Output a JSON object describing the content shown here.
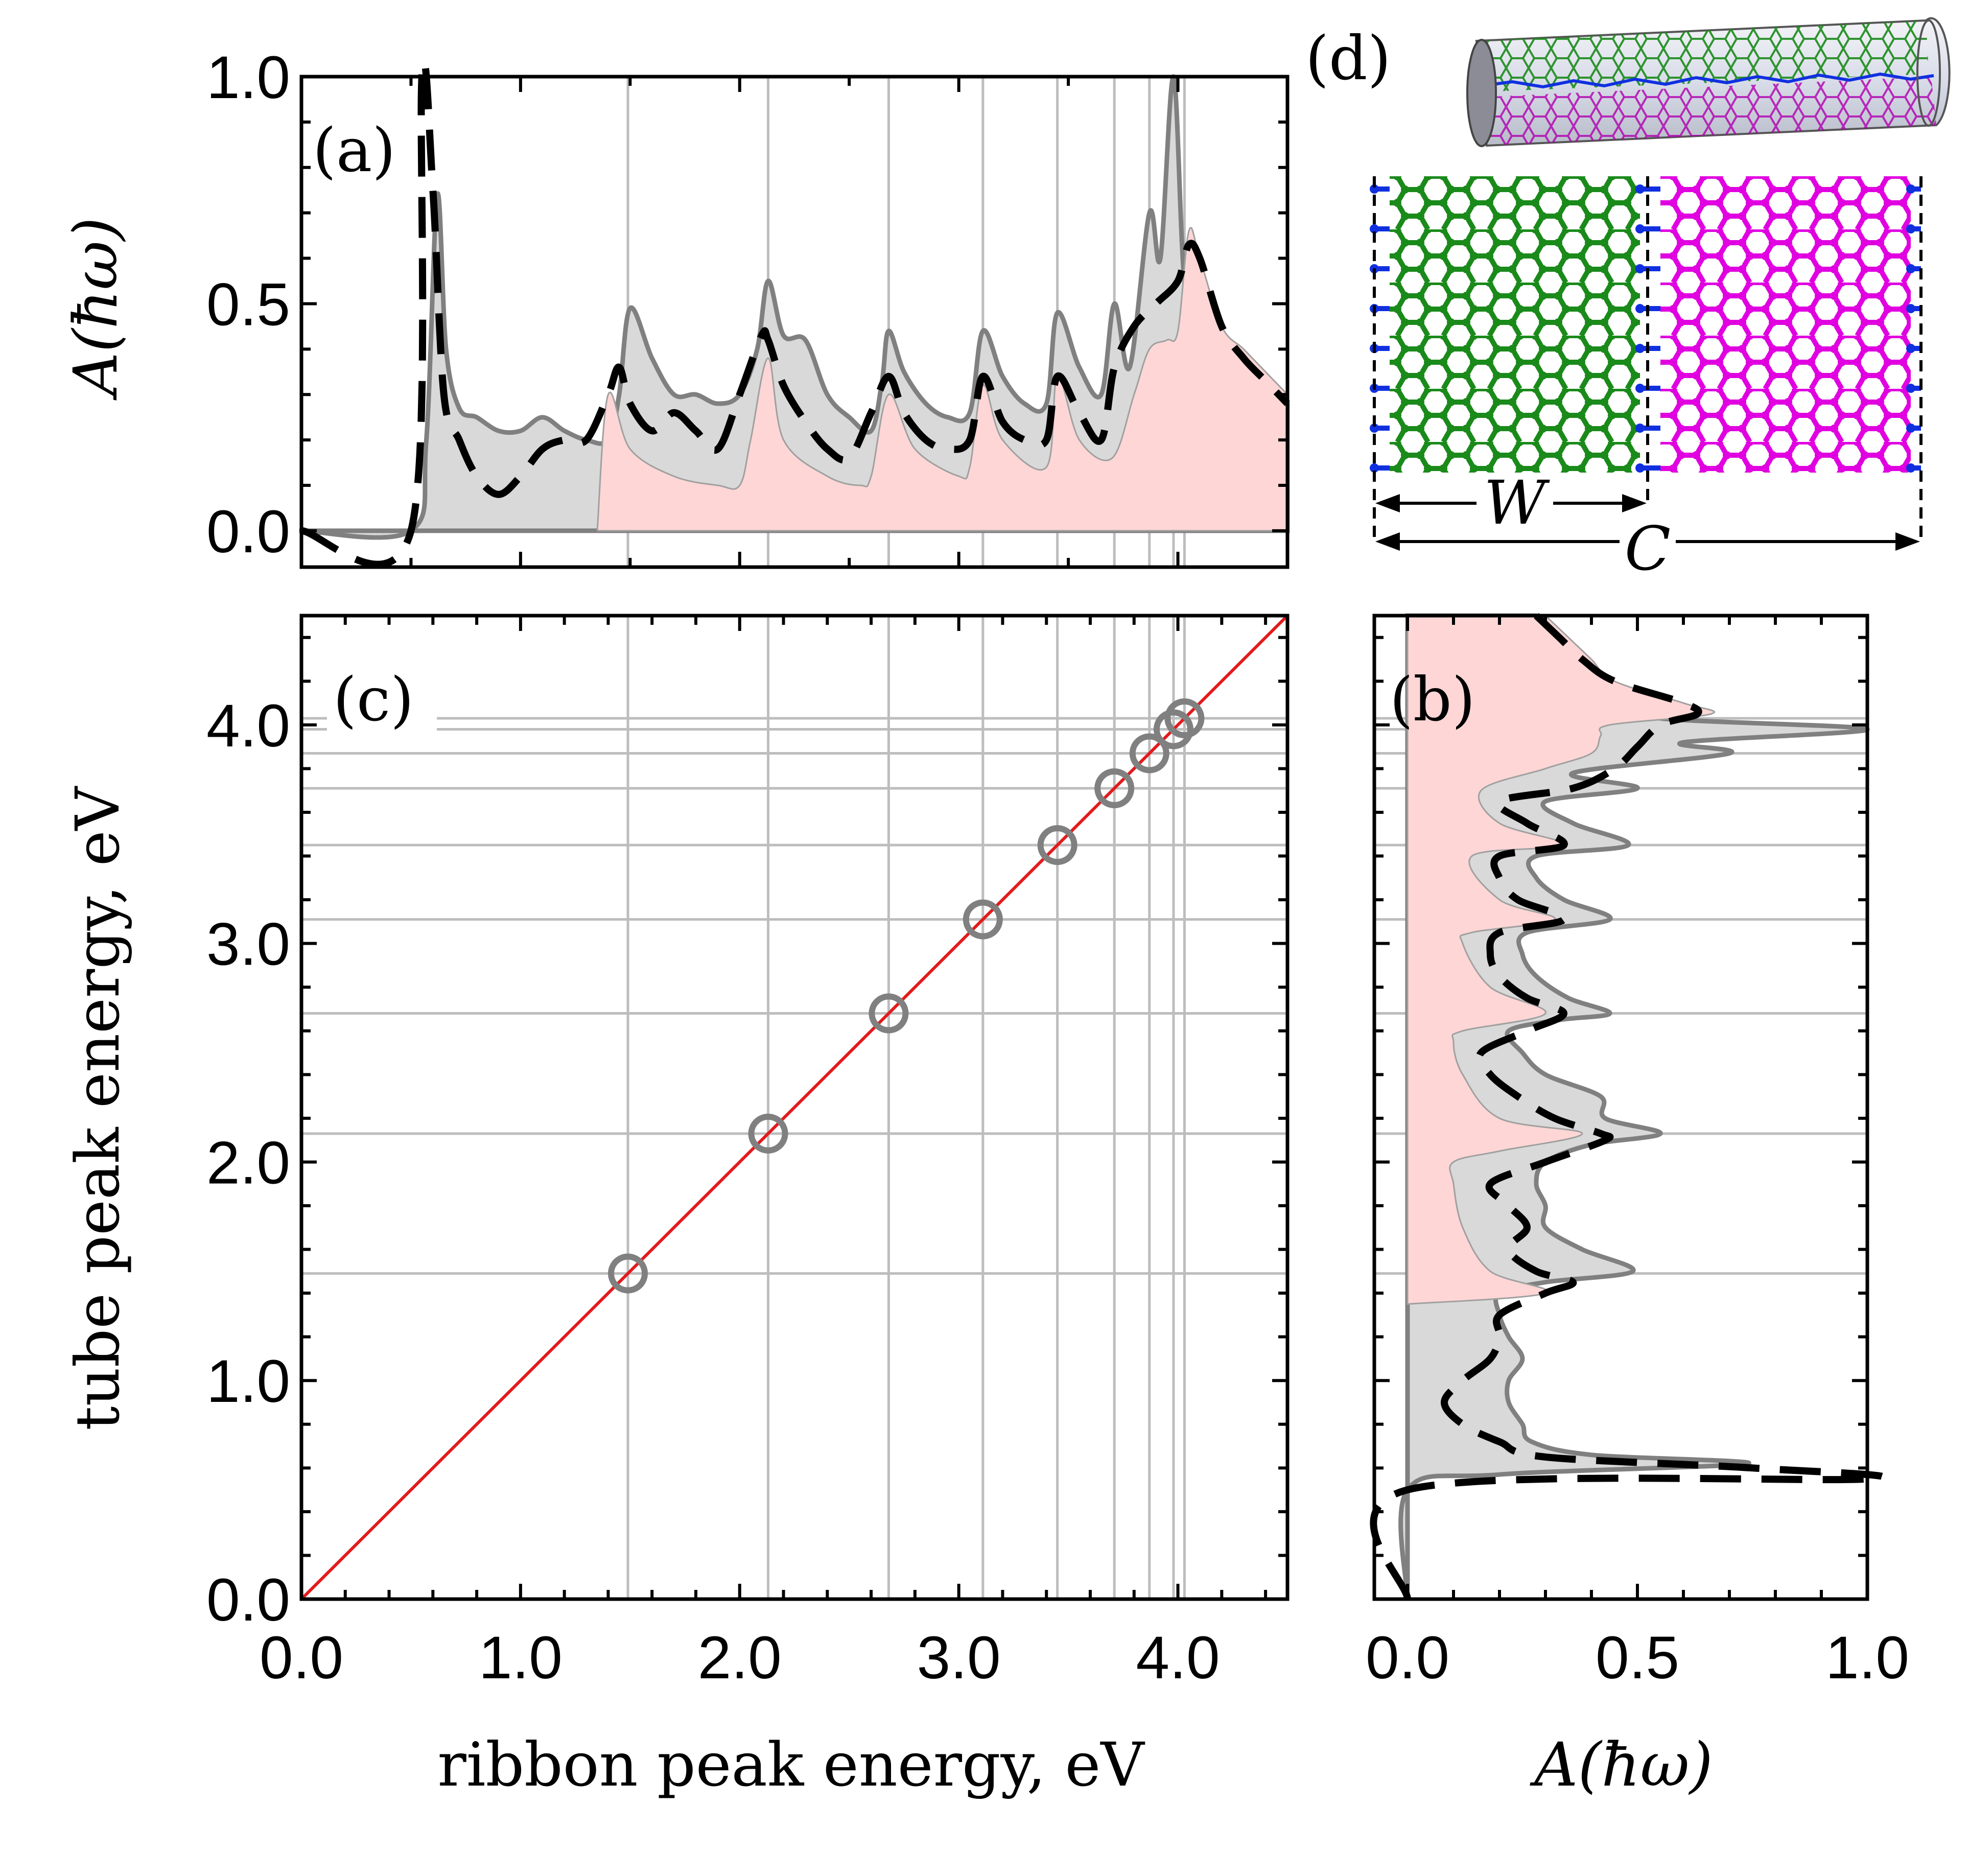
{
  "chart_data": [
    {
      "panel": "a",
      "type": "area",
      "panel_label": "(a)",
      "ylabel": "A(ħω)",
      "xlim": [
        0.0,
        4.5
      ],
      "ylim": [
        -0.08,
        1.0
      ],
      "yticks": [
        "0.0",
        "0.5",
        "1.0"
      ],
      "peak_lines_x": [
        1.49,
        2.13,
        2.68,
        3.11,
        3.45,
        3.71,
        3.87,
        3.98,
        4.03
      ],
      "series": [
        {
          "style": "gray filled",
          "x": [
            0.0,
            0.5,
            0.57,
            0.62,
            0.66,
            0.72,
            0.8,
            0.9,
            1.0,
            1.1,
            1.2,
            1.3,
            1.4,
            1.45,
            1.5,
            1.6,
            1.7,
            1.8,
            1.9,
            2.0,
            2.08,
            2.13,
            2.2,
            2.3,
            2.4,
            2.5,
            2.6,
            2.65,
            2.68,
            2.75,
            2.85,
            2.95,
            3.05,
            3.11,
            3.2,
            3.3,
            3.4,
            3.45,
            3.55,
            3.65,
            3.71,
            3.78,
            3.87,
            3.92,
            3.98,
            4.03,
            4.1,
            4.2,
            4.3,
            4.4,
            4.5
          ],
          "y": [
            0.0,
            0.0,
            0.2,
            0.74,
            0.4,
            0.27,
            0.25,
            0.22,
            0.22,
            0.25,
            0.22,
            0.2,
            0.2,
            0.3,
            0.49,
            0.38,
            0.3,
            0.3,
            0.28,
            0.3,
            0.4,
            0.55,
            0.43,
            0.42,
            0.3,
            0.25,
            0.22,
            0.33,
            0.44,
            0.35,
            0.28,
            0.25,
            0.26,
            0.44,
            0.34,
            0.28,
            0.28,
            0.48,
            0.36,
            0.3,
            0.5,
            0.36,
            0.7,
            0.6,
            1.0,
            0.55,
            0.48,
            0.42,
            0.38,
            0.33,
            0.28
          ]
        },
        {
          "style": "black dashed",
          "x": [
            0.0,
            0.5,
            0.55,
            0.6,
            0.65,
            0.72,
            0.8,
            0.9,
            1.0,
            1.1,
            1.2,
            1.3,
            1.4,
            1.45,
            1.5,
            1.6,
            1.7,
            1.8,
            1.9,
            2.0,
            2.1,
            2.13,
            2.2,
            2.3,
            2.4,
            2.5,
            2.6,
            2.68,
            2.75,
            2.85,
            2.95,
            3.05,
            3.11,
            3.2,
            3.3,
            3.4,
            3.45,
            3.55,
            3.65,
            3.71,
            3.8,
            3.9,
            4.0,
            4.05,
            4.1,
            4.2,
            4.3,
            4.4,
            4.5
          ],
          "y": [
            0.0,
            0.0,
            1.0,
            0.75,
            0.3,
            0.2,
            0.12,
            0.08,
            0.12,
            0.18,
            0.2,
            0.2,
            0.3,
            0.36,
            0.28,
            0.22,
            0.26,
            0.22,
            0.18,
            0.3,
            0.43,
            0.42,
            0.32,
            0.24,
            0.18,
            0.16,
            0.26,
            0.34,
            0.26,
            0.2,
            0.18,
            0.2,
            0.34,
            0.24,
            0.2,
            0.2,
            0.34,
            0.26,
            0.2,
            0.36,
            0.45,
            0.5,
            0.55,
            0.63,
            0.6,
            0.45,
            0.38,
            0.33,
            0.28
          ]
        },
        {
          "style": "pink filled",
          "x": [
            1.35,
            1.4,
            1.5,
            1.7,
            1.9,
            2.0,
            2.05,
            2.13,
            2.2,
            2.4,
            2.55,
            2.6,
            2.68,
            2.8,
            3.0,
            3.05,
            3.11,
            3.2,
            3.4,
            3.45,
            3.55,
            3.7,
            3.8,
            3.87,
            3.95,
            4.0,
            4.05,
            4.1,
            4.2,
            4.3,
            4.4,
            4.5
          ],
          "y": [
            0.0,
            0.3,
            0.18,
            0.12,
            0.1,
            0.1,
            0.2,
            0.38,
            0.2,
            0.12,
            0.1,
            0.12,
            0.3,
            0.18,
            0.12,
            0.14,
            0.32,
            0.2,
            0.14,
            0.34,
            0.2,
            0.16,
            0.3,
            0.4,
            0.42,
            0.44,
            0.66,
            0.6,
            0.45,
            0.4,
            0.35,
            0.3
          ]
        }
      ]
    },
    {
      "panel": "b",
      "type": "area",
      "panel_label": "(b)",
      "xlabel": "A(ħω)",
      "xlim": [
        0.0,
        1.0
      ],
      "ylim": [
        0.0,
        4.5
      ],
      "xticks": [
        "0.0",
        "0.5",
        "1.0"
      ],
      "peak_lines_y": [
        1.49,
        2.13,
        2.68,
        3.11,
        3.45,
        3.71,
        3.87,
        3.98,
        4.03
      ],
      "note": "mirror of panel (a) with energy on the vertical axis"
    },
    {
      "panel": "c",
      "type": "scatter",
      "panel_label": "(c)",
      "xlabel": "ribbon peak energy, eV",
      "ylabel": "tube peak energy, eV",
      "xlim": [
        0.0,
        4.5
      ],
      "ylim": [
        0.0,
        4.5
      ],
      "xticks": [
        "0.0",
        "1.0",
        "2.0",
        "3.0",
        "4.0"
      ],
      "yticks": [
        "0.0",
        "1.0",
        "2.0",
        "3.0",
        "4.0"
      ],
      "points": {
        "x": [
          1.49,
          2.13,
          2.68,
          3.11,
          3.45,
          3.71,
          3.87,
          3.98,
          4.03
        ],
        "y": [
          1.49,
          2.13,
          2.68,
          3.11,
          3.45,
          3.71,
          3.87,
          3.98,
          4.03
        ]
      },
      "reference_line": {
        "x": [
          0.0,
          4.5
        ],
        "y": [
          0.0,
          4.5
        ],
        "color": "#e31a1c"
      }
    },
    {
      "panel": "d",
      "type": "diagram",
      "panel_label": "(d)",
      "labels": {
        "width": "W",
        "circumference": "C"
      },
      "colors": {
        "green": "#1a8a1a",
        "magenta": "#e000e0",
        "blue": "#1030e0"
      }
    }
  ],
  "colors": {
    "gray_fill": "#d9d9d9",
    "gray_line": "#808080",
    "pink_fill": "#ffd6d6",
    "red_line": "#e31a1c",
    "peak_line": "#bdbdbd"
  }
}
